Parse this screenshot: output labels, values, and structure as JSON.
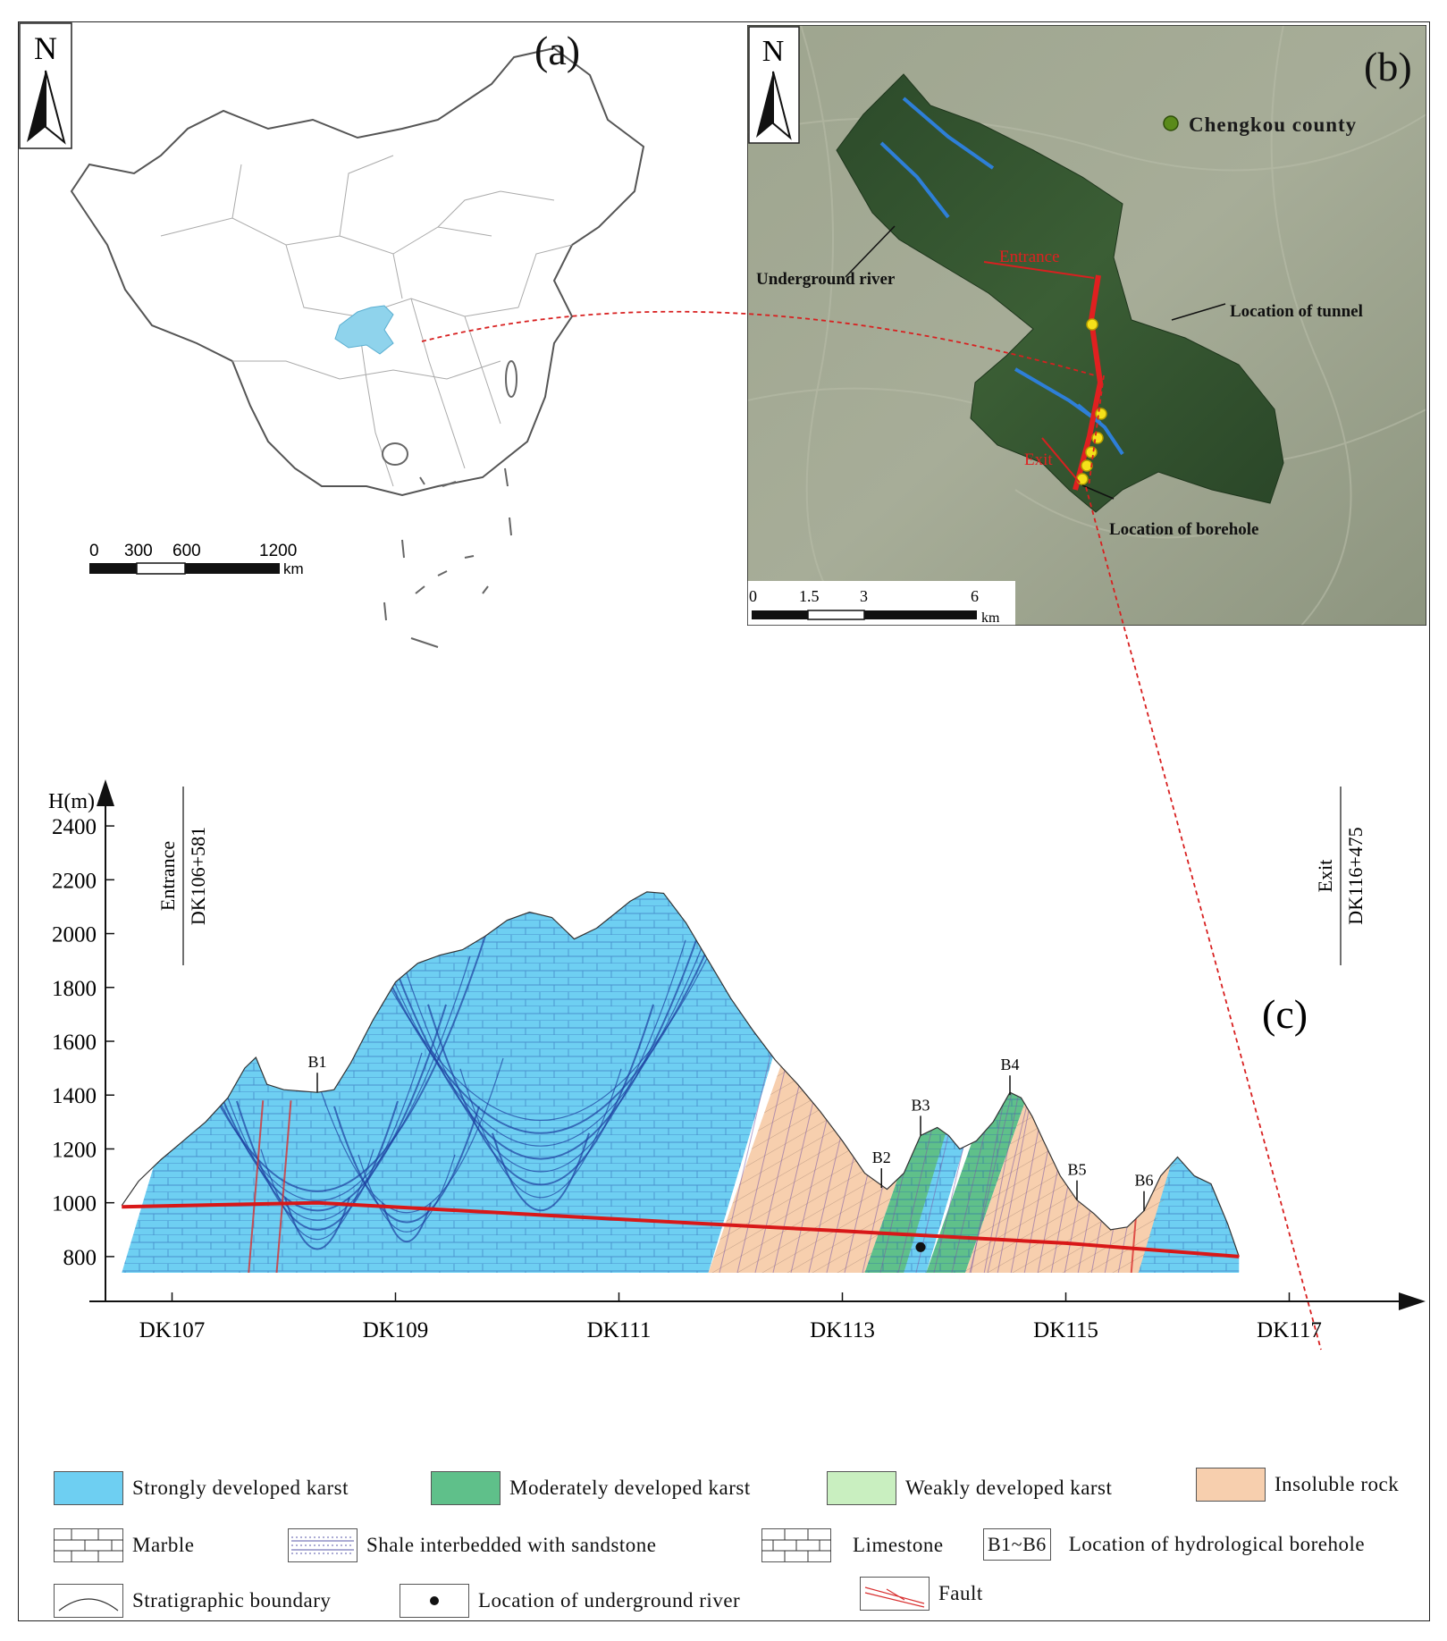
{
  "panels": {
    "a": {
      "letter": "(a)",
      "north": "N",
      "scale": {
        "ticks": [
          "0",
          "300",
          "600",
          "1200"
        ],
        "unit": "km"
      }
    },
    "b": {
      "letter": "(b)",
      "north": "N",
      "labels": {
        "county": "Chengkou county",
        "underground_river": "Underground river",
        "tunnel": "Location of tunnel",
        "borehole": "Location of borehole",
        "entrance": "Entrance",
        "exit": "Exit"
      },
      "scale": {
        "ticks": [
          "0",
          "1.5",
          "3",
          "6"
        ],
        "unit": "km"
      },
      "colors": {
        "river": "#2e7fd8",
        "tunnel": "#e02020",
        "borehole": "#f5e11a",
        "county": "#5a8a1a"
      }
    },
    "c": {
      "letter": "(c)",
      "y_axis_label": "H(m)",
      "entrance": {
        "top": "Entrance",
        "bottom": "DK106+581"
      },
      "exit": {
        "top": "Exit",
        "bottom": "DK116+475"
      },
      "boreholes": [
        "B1",
        "B2",
        "B3",
        "B4",
        "B5",
        "B6"
      ]
    }
  },
  "chart_data": {
    "type": "area",
    "title": "",
    "xlabel": "",
    "ylabel": "H(m)",
    "x_ticks": [
      "DK107",
      "DK109",
      "DK111",
      "DK113",
      "DK115",
      "DK117"
    ],
    "x_tick_values": [
      107,
      109,
      111,
      113,
      115,
      117
    ],
    "xlim": [
      106.3,
      117.3
    ],
    "y_ticks": [
      800,
      1000,
      1200,
      1400,
      1600,
      1800,
      2000,
      2200,
      2400
    ],
    "ylim": [
      720,
      2480
    ],
    "ground_profile": {
      "x": [
        106.55,
        106.7,
        106.9,
        107.1,
        107.3,
        107.5,
        107.65,
        107.75,
        107.85,
        108.0,
        108.15,
        108.3,
        108.45,
        108.6,
        108.8,
        109.0,
        109.2,
        109.4,
        109.6,
        109.8,
        110.0,
        110.2,
        110.4,
        110.6,
        110.8,
        110.95,
        111.1,
        111.25,
        111.4,
        111.6,
        111.8,
        112.0,
        112.2,
        112.4,
        112.6,
        112.8,
        113.0,
        113.2,
        113.4,
        113.55,
        113.7,
        113.85,
        113.95,
        114.05,
        114.2,
        114.35,
        114.5,
        114.6,
        114.7,
        114.8,
        114.95,
        115.1,
        115.25,
        115.4,
        115.55,
        115.7,
        115.85,
        116.0,
        116.15,
        116.3,
        116.45,
        116.55
      ],
      "y": [
        990,
        1080,
        1160,
        1230,
        1300,
        1390,
        1500,
        1540,
        1440,
        1420,
        1415,
        1410,
        1420,
        1520,
        1680,
        1820,
        1890,
        1920,
        1940,
        1990,
        2050,
        2080,
        2060,
        1980,
        2020,
        2070,
        2120,
        2155,
        2150,
        2040,
        1900,
        1760,
        1640,
        1530,
        1440,
        1340,
        1230,
        1110,
        1050,
        1110,
        1250,
        1280,
        1250,
        1200,
        1230,
        1300,
        1410,
        1390,
        1320,
        1230,
        1100,
        1010,
        960,
        900,
        910,
        970,
        1100,
        1170,
        1100,
        1070,
        920,
        800
      ]
    },
    "tunnel": {
      "x": [
        106.55,
        108.3,
        110.5,
        113.0,
        115.0,
        116.55
      ],
      "y": [
        985,
        1000,
        950,
        895,
        850,
        800
      ]
    },
    "boreholes": [
      {
        "name": "B1",
        "x": 108.3,
        "y": 1410
      },
      {
        "name": "B2",
        "x": 113.35,
        "y": 1055
      },
      {
        "name": "B3",
        "x": 113.7,
        "y": 1250
      },
      {
        "name": "B4",
        "x": 114.5,
        "y": 1400
      },
      {
        "name": "B5",
        "x": 115.1,
        "y": 1010
      },
      {
        "name": "B6",
        "x": 115.7,
        "y": 970
      }
    ],
    "underground_river": {
      "x": 113.7,
      "y": 835
    },
    "zones": [
      {
        "from": 106.55,
        "to": 111.8,
        "class": "Strongly developed karst",
        "color": "#6ecff2"
      },
      {
        "from": 111.8,
        "to": 113.2,
        "class": "Insoluble rock",
        "color": "#f7cfae"
      },
      {
        "from": 113.2,
        "to": 113.55,
        "class": "Moderately developed karst",
        "color": "#5fc08a"
      },
      {
        "from": 113.55,
        "to": 113.75,
        "class": "Strongly developed karst",
        "color": "#6ecff2"
      },
      {
        "from": 113.75,
        "to": 114.1,
        "class": "Moderately developed karst",
        "color": "#5fc08a"
      },
      {
        "from": 114.1,
        "to": 115.65,
        "class": "Insoluble rock",
        "color": "#f7cfae"
      },
      {
        "from": 115.65,
        "to": 116.55,
        "class": "Strongly developed karst",
        "color": "#6ecff2"
      }
    ]
  },
  "legend": {
    "strong": {
      "label": "Strongly developed karst",
      "color": "#6ecff2"
    },
    "moderate": {
      "label": "Moderately developed karst",
      "color": "#5fc08a"
    },
    "weak": {
      "label": "Weakly developed karst",
      "color": "#c9efc0"
    },
    "insoluble": {
      "label": "Insoluble rock",
      "color": "#f7cfae"
    },
    "marble": {
      "label": "Marble"
    },
    "shale": {
      "label": "Shale interbedded with sandstone"
    },
    "limestone": {
      "label": "Limestone"
    },
    "borehole": {
      "label": "Location of hydrological borehole",
      "code": "B1~B6"
    },
    "boundary": {
      "label": "Stratigraphic boundary"
    },
    "river": {
      "label": "Location of underground river"
    },
    "fault": {
      "label": "Fault"
    }
  }
}
